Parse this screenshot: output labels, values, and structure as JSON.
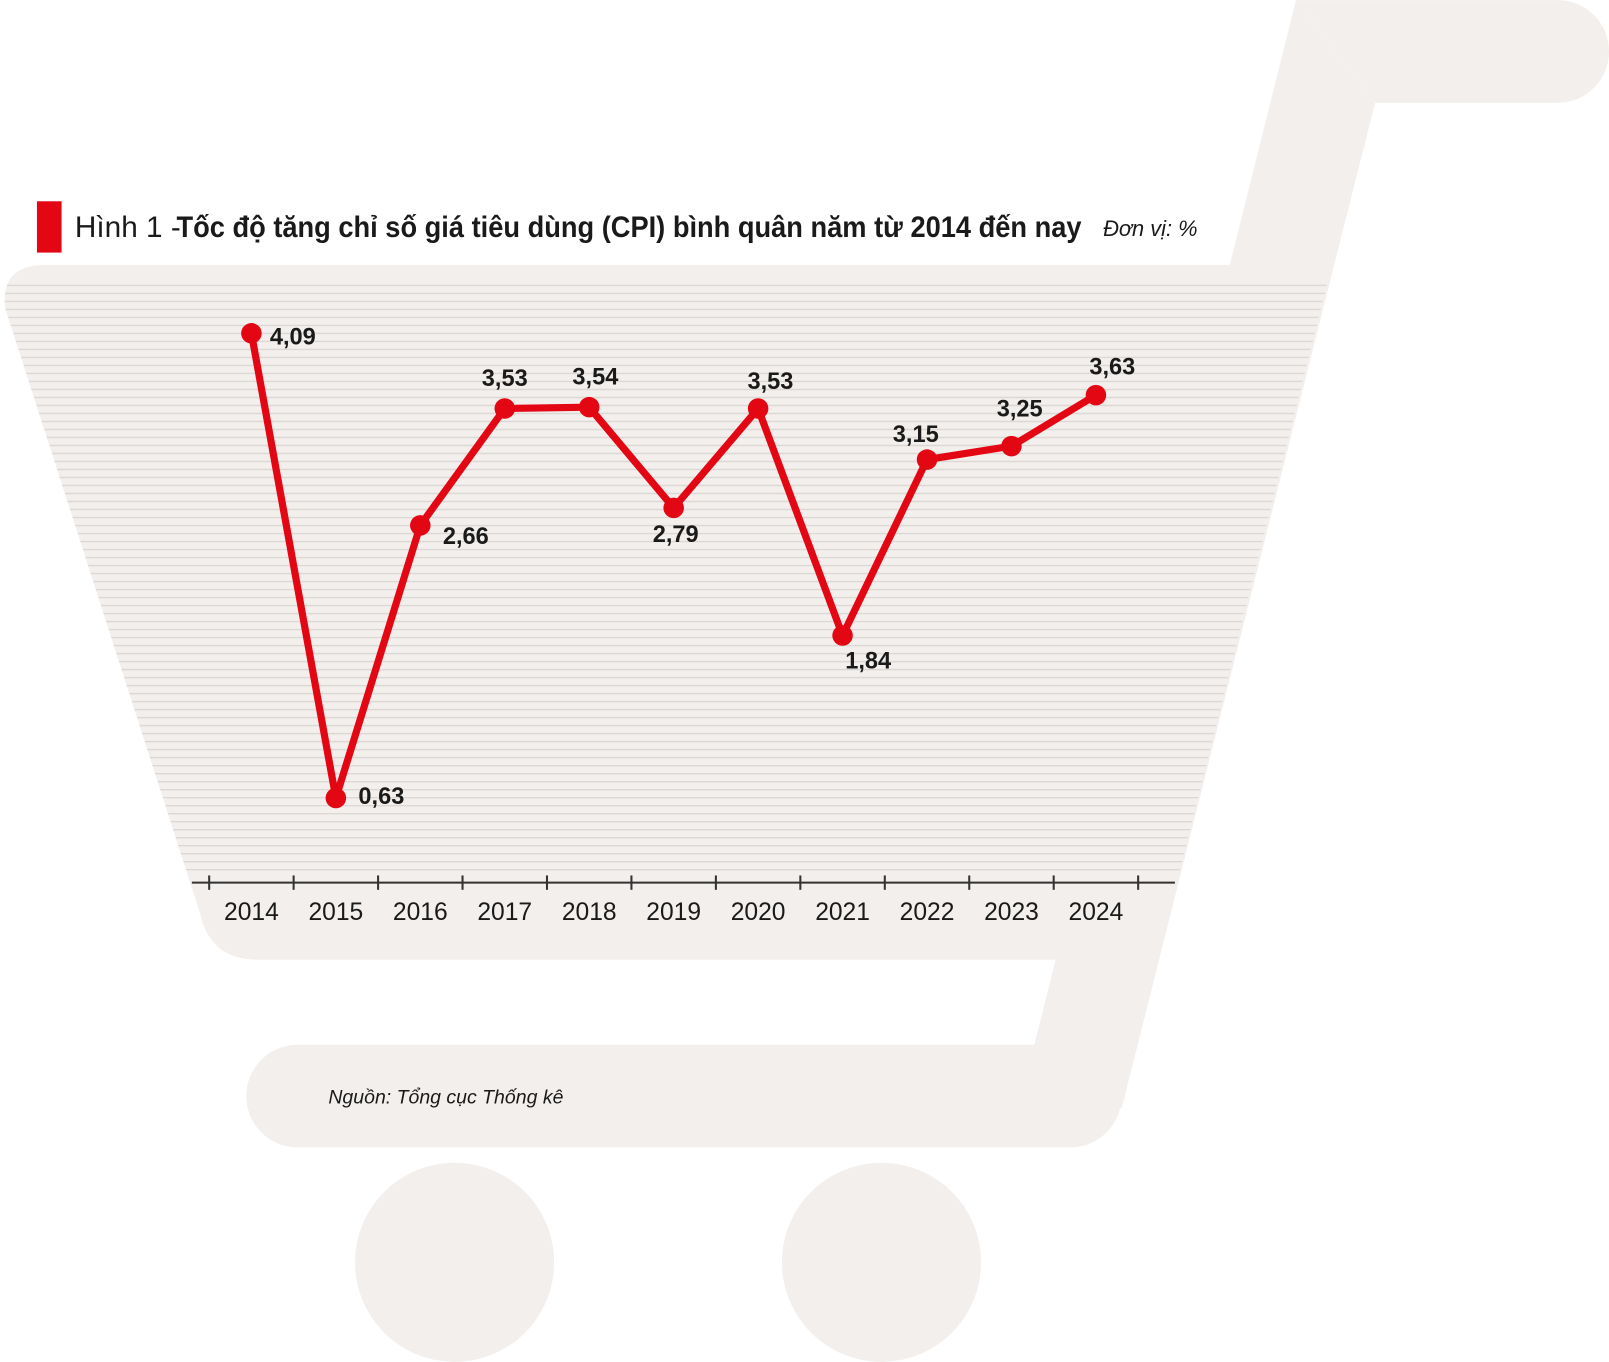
{
  "chart_data": {
    "type": "line",
    "figure_label": "Hình 1 -",
    "title": "Tốc độ tăng chỉ số giá tiêu dùng (CPI) bình quân năm từ 2014 đến nay",
    "unit": "Đơn vị: %",
    "source": "Nguồn: Tổng cục Thống kê",
    "categories": [
      "2014",
      "2015",
      "2016",
      "2017",
      "2018",
      "2019",
      "2020",
      "2021",
      "2022",
      "2023",
      "2024"
    ],
    "values": [
      4.09,
      0.63,
      2.66,
      3.53,
      3.54,
      2.79,
      3.53,
      1.84,
      3.15,
      3.25,
      3.63
    ],
    "value_labels": [
      "4,09",
      "0,63",
      "2,66",
      "3,53",
      "3,54",
      "2,79",
      "3,53",
      "1,84",
      "3,15",
      "3,25",
      "3,63"
    ],
    "color": "#e30613",
    "ylim": [
      0,
      4.5
    ]
  }
}
